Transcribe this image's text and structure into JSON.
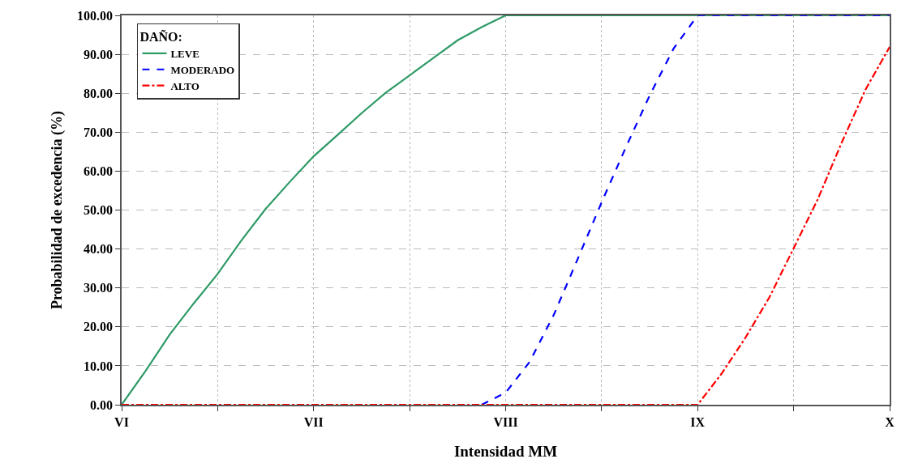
{
  "chart_data": {
    "type": "line",
    "xlabel": "Intensidad MM",
    "ylabel": "Probabilidad de excedencia (%)",
    "legend_title": "DAÑO:",
    "legend": "top left",
    "grid": true,
    "categories": [
      "VI",
      null,
      null,
      null,
      null,
      null,
      null,
      null,
      "VII",
      null,
      null,
      null,
      null,
      null,
      null,
      null,
      "VIII",
      null,
      null,
      null,
      null,
      null,
      null,
      null,
      "IX",
      null,
      null,
      null,
      null,
      null,
      null,
      null,
      "X"
    ],
    "ylim": [
      0,
      100
    ],
    "yticks": [
      {
        "value": 0,
        "label": "0.00"
      },
      {
        "value": 10,
        "label": "10.00"
      },
      {
        "value": 20,
        "label": "20.00"
      },
      {
        "value": 30,
        "label": "30.00"
      },
      {
        "value": 40,
        "label": "40.00"
      },
      {
        "value": 50,
        "label": "50.00"
      },
      {
        "value": 60,
        "label": "60.00"
      },
      {
        "value": 70,
        "label": "70.00"
      },
      {
        "value": 80,
        "label": "80.00"
      },
      {
        "value": 90,
        "label": "90.00"
      },
      {
        "value": 100,
        "label": "100.00"
      }
    ],
    "series": [
      {
        "name": "LEVE",
        "color": "#2e9a66",
        "line_style": "solid",
        "values": [
          0,
          8.7,
          18,
          26,
          33.6,
          42.3,
          50.3,
          57.2,
          63.8,
          69.3,
          74.9,
          80.1,
          84.6,
          89.1,
          93.6,
          97,
          100,
          100,
          100,
          100,
          100,
          100,
          100,
          100,
          100,
          100,
          100,
          100,
          100,
          100,
          100,
          100,
          100
        ]
      },
      {
        "name": "MODERADO",
        "color": "#0000ff",
        "line_style": "dashed",
        "values": [
          null,
          null,
          null,
          null,
          null,
          null,
          null,
          null,
          null,
          null,
          null,
          null,
          null,
          null,
          null,
          0,
          3.1,
          11,
          23,
          37.4,
          52,
          66,
          79.4,
          91.5,
          100,
          100,
          100,
          100,
          100,
          100,
          100,
          100,
          100
        ]
      },
      {
        "name": "ALTO",
        "color": "#ff0000",
        "line_style": "dashdot",
        "values": [
          0,
          0,
          0,
          0,
          0,
          0,
          0,
          0,
          0,
          0,
          0,
          0,
          0,
          0,
          0,
          0,
          0,
          0,
          0,
          0,
          0,
          0,
          0,
          0,
          0,
          8,
          17.3,
          27.7,
          40.2,
          52.7,
          67.3,
          81,
          91.9
        ]
      }
    ]
  }
}
